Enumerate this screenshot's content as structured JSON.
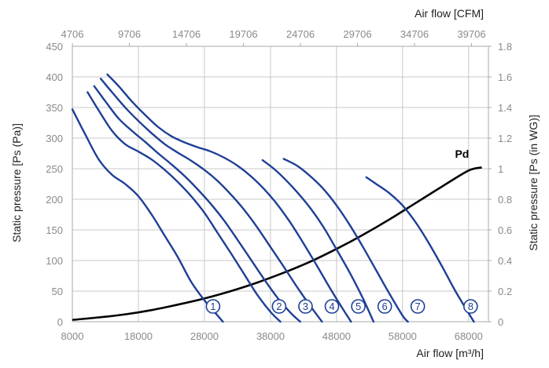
{
  "chart_data": {
    "type": "line",
    "xlabel_bottom": "Air flow [m³/h]",
    "xlabel_top": "Air flow [CFM]",
    "ylabel_left": "Static pressure [Ps (Pa)]",
    "ylabel_right": "Static pressure [Ps (in WG)]",
    "xlim": [
      8000,
      71000
    ],
    "ylim": [
      0,
      450
    ],
    "x_ticks": [
      8000,
      18000,
      28000,
      38000,
      48000,
      58000,
      68000
    ],
    "y_ticks": [
      0,
      50,
      100,
      150,
      200,
      250,
      300,
      350,
      400,
      450
    ],
    "top_ticks": [
      "4706",
      "9706",
      "14706",
      "19706",
      "24706",
      "29706",
      "34706",
      "39706"
    ],
    "right_ticks": [
      "0",
      "0.2",
      "0.4",
      "0.6",
      "0.8",
      "1",
      "1.2",
      "1.4",
      "1.6",
      "1.8"
    ],
    "grid": true,
    "series": [
      {
        "name": "1",
        "color": "#1f3f96",
        "points": [
          [
            8000,
            347
          ],
          [
            10000,
            305
          ],
          [
            12000,
            265
          ],
          [
            14000,
            240
          ],
          [
            16000,
            225
          ],
          [
            18000,
            205
          ],
          [
            20000,
            175
          ],
          [
            22000,
            140
          ],
          [
            24000,
            105
          ],
          [
            26000,
            65
          ],
          [
            28000,
            35
          ],
          [
            30000,
            10
          ],
          [
            30800,
            0
          ]
        ]
      },
      {
        "name": "2",
        "color": "#1f3f96",
        "points": [
          [
            10300,
            375
          ],
          [
            12000,
            345
          ],
          [
            14000,
            312
          ],
          [
            16000,
            290
          ],
          [
            18000,
            278
          ],
          [
            20000,
            265
          ],
          [
            22000,
            248
          ],
          [
            24000,
            228
          ],
          [
            26000,
            205
          ],
          [
            28000,
            178
          ],
          [
            30000,
            145
          ],
          [
            32000,
            112
          ],
          [
            34000,
            78
          ],
          [
            36000,
            44
          ],
          [
            38000,
            16
          ],
          [
            39500,
            0
          ]
        ]
      },
      {
        "name": "3",
        "color": "#1f3f96",
        "points": [
          [
            11300,
            385
          ],
          [
            13000,
            360
          ],
          [
            15000,
            332
          ],
          [
            17000,
            312
          ],
          [
            19000,
            294
          ],
          [
            21000,
            275
          ],
          [
            23000,
            257
          ],
          [
            25000,
            238
          ],
          [
            27000,
            216
          ],
          [
            29000,
            192
          ],
          [
            31000,
            165
          ],
          [
            33000,
            134
          ],
          [
            35000,
            102
          ],
          [
            37000,
            70
          ],
          [
            39000,
            40
          ],
          [
            41000,
            15
          ],
          [
            42500,
            0
          ]
        ]
      },
      {
        "name": "4",
        "color": "#1f3f96",
        "points": [
          [
            12300,
            397
          ],
          [
            14000,
            375
          ],
          [
            16000,
            350
          ],
          [
            18000,
            328
          ],
          [
            20000,
            308
          ],
          [
            22000,
            290
          ],
          [
            24000,
            276
          ],
          [
            26000,
            263
          ],
          [
            28000,
            248
          ],
          [
            30000,
            230
          ],
          [
            32000,
            208
          ],
          [
            34000,
            183
          ],
          [
            36000,
            154
          ],
          [
            38000,
            122
          ],
          [
            40000,
            90
          ],
          [
            42000,
            57
          ],
          [
            44000,
            26
          ],
          [
            45800,
            0
          ]
        ]
      },
      {
        "name": "5",
        "color": "#1f3f96",
        "points": [
          [
            13300,
            404
          ],
          [
            15000,
            385
          ],
          [
            17000,
            360
          ],
          [
            19000,
            338
          ],
          [
            21000,
            318
          ],
          [
            23000,
            303
          ],
          [
            25000,
            293
          ],
          [
            27000,
            285
          ],
          [
            29000,
            278
          ],
          [
            31000,
            268
          ],
          [
            33000,
            255
          ],
          [
            35000,
            238
          ],
          [
            37000,
            217
          ],
          [
            39000,
            192
          ],
          [
            41000,
            162
          ],
          [
            43000,
            128
          ],
          [
            45000,
            92
          ],
          [
            47000,
            55
          ],
          [
            49000,
            20
          ],
          [
            50200,
            0
          ]
        ]
      },
      {
        "name": "6",
        "color": "#1f3f96",
        "points": [
          [
            36800,
            264
          ],
          [
            38500,
            250
          ],
          [
            40000,
            235
          ],
          [
            42000,
            212
          ],
          [
            44000,
            186
          ],
          [
            46000,
            155
          ],
          [
            48000,
            118
          ],
          [
            50000,
            80
          ],
          [
            52000,
            38
          ],
          [
            53600,
            0
          ]
        ]
      },
      {
        "name": "7",
        "color": "#1f3f96",
        "points": [
          [
            40000,
            266
          ],
          [
            42000,
            255
          ],
          [
            44000,
            238
          ],
          [
            46000,
            217
          ],
          [
            48000,
            190
          ],
          [
            50000,
            158
          ],
          [
            52000,
            122
          ],
          [
            54000,
            84
          ],
          [
            56000,
            46
          ],
          [
            58000,
            10
          ],
          [
            58800,
            0
          ]
        ]
      },
      {
        "name": "8",
        "color": "#1f3f96",
        "points": [
          [
            52500,
            236
          ],
          [
            54000,
            225
          ],
          [
            56000,
            210
          ],
          [
            58000,
            190
          ],
          [
            60000,
            162
          ],
          [
            62000,
            128
          ],
          [
            64000,
            90
          ],
          [
            66000,
            50
          ],
          [
            68000,
            14
          ],
          [
            68800,
            0
          ]
        ]
      }
    ],
    "pd_curve": {
      "name": "Pd",
      "color": "#000000",
      "points": [
        [
          8000,
          3
        ],
        [
          12000,
          7
        ],
        [
          16000,
          12
        ],
        [
          20000,
          19
        ],
        [
          24000,
          28
        ],
        [
          28000,
          38
        ],
        [
          32000,
          50
        ],
        [
          36000,
          64
        ],
        [
          40000,
          80
        ],
        [
          44000,
          98
        ],
        [
          48000,
          119
        ],
        [
          52000,
          142
        ],
        [
          56000,
          167
        ],
        [
          60000,
          194
        ],
        [
          64000,
          221
        ],
        [
          68000,
          247
        ],
        [
          70000,
          252
        ]
      ]
    },
    "curve_labels": [
      {
        "label": "1",
        "x": 29300,
        "y": 25
      },
      {
        "label": "2",
        "x": 39300,
        "y": 25
      },
      {
        "label": "3",
        "x": 43300,
        "y": 25
      },
      {
        "label": "4",
        "x": 47300,
        "y": 25
      },
      {
        "label": "5",
        "x": 51300,
        "y": 25
      },
      {
        "label": "6",
        "x": 55300,
        "y": 25
      },
      {
        "label": "7",
        "x": 60300,
        "y": 25
      },
      {
        "label": "8",
        "x": 68300,
        "y": 25
      }
    ],
    "pd_label": {
      "text": "Pd",
      "x": 67000,
      "y": 268
    }
  }
}
